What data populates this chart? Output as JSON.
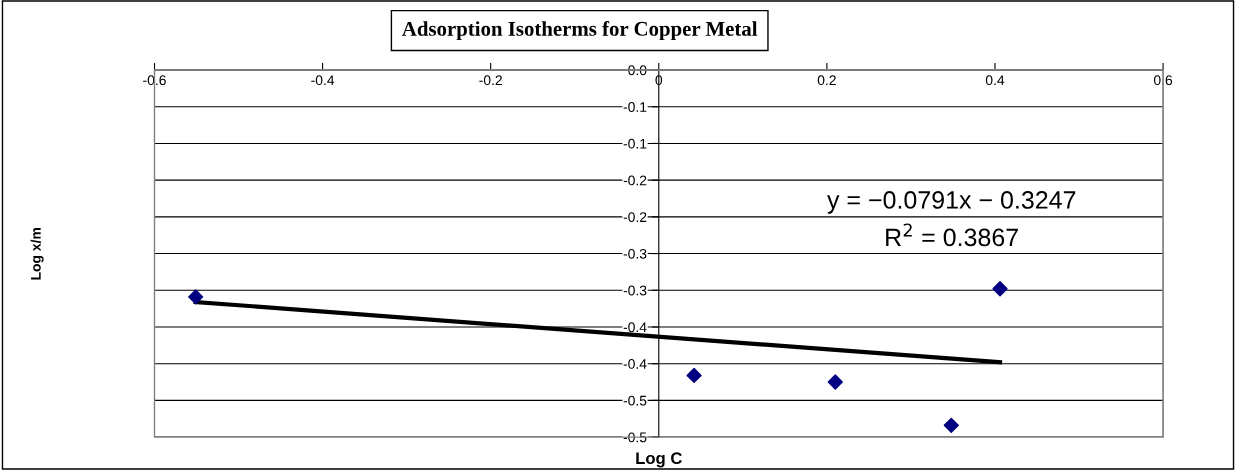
{
  "chart_data": {
    "type": "scatter",
    "title": "Adsorption Isotherms for Copper Metal",
    "xlabel": "Log C",
    "xlim": [
      -0.6,
      0.6
    ],
    "xticks": [
      -0.6,
      -0.4,
      -0.2,
      0,
      0.2,
      0.4,
      0.6
    ],
    "ylim": [
      -0.5,
      0.0
    ],
    "yticks": [
      {
        "value": 0.0,
        "label": "0.0"
      },
      {
        "value": -0.05,
        "label": "-0.1"
      },
      {
        "value": -0.1,
        "label": "-0.1"
      },
      {
        "value": -0.15,
        "label": "-0.2"
      },
      {
        "value": -0.2,
        "label": "-0.2"
      },
      {
        "value": -0.25,
        "label": "-0.3"
      },
      {
        "value": -0.3,
        "label": "-0.3"
      },
      {
        "value": -0.35,
        "label": "-0.4"
      },
      {
        "value": -0.4,
        "label": "-0.4"
      },
      {
        "value": -0.45,
        "label": "-0.5"
      },
      {
        "value": -0.5,
        "label": "-0.5"
      }
    ],
    "grid": "y",
    "series": [
      {
        "color": "#000080",
        "marker": "diamond",
        "x": [
          -0.551,
          0.042,
          0.21,
          0.348,
          0.406
        ],
        "values": [
          -0.309,
          -0.416,
          -0.425,
          -0.484,
          -0.298
        ]
      },
      {
        "type": "line",
        "color": "#000000",
        "x": [
          -0.551,
          0.406
        ],
        "values": [
          -0.316,
          -0.398
        ]
      }
    ],
    "annotations": [
      "Log x/m",
      "y = −0.0791x − 0.3247",
      "R$^{2}$ = 0.3867"
    ]
  }
}
